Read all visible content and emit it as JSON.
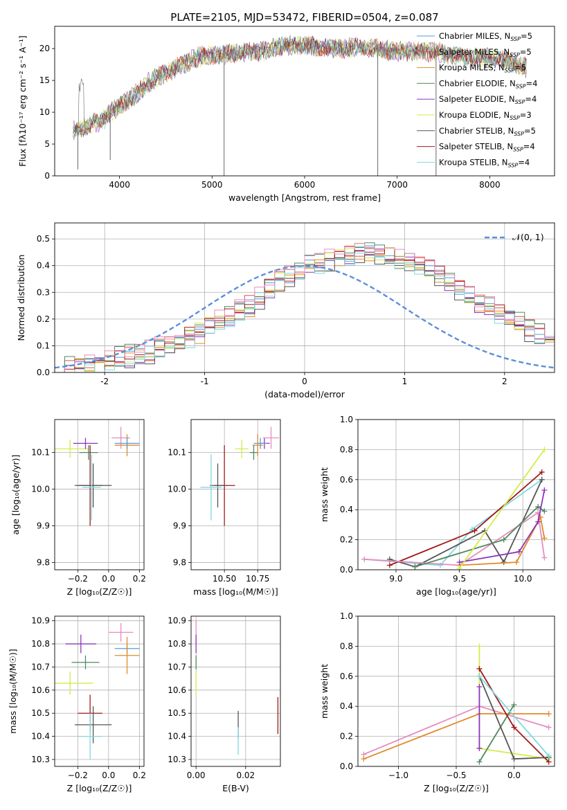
{
  "figure_title": "PLATE=2105, MJD=53472, FIBERID=0504, z=0.087",
  "colors": {
    "Chabrier MILES": "#5a9bd4",
    "Salpeter MILES": "#e2504c",
    "Kroupa MILES": "#e08a2a",
    "Chabrier ELODIE": "#4e8a5c",
    "Salpeter ELODIE": "#8e35b8",
    "Kroupa ELODIE": "#d6ea4a",
    "Chabrier STELIB": "#555555",
    "Salpeter STELIB": "#a01818",
    "Kroupa STELIB": "#7fd8e0",
    "Salpeter MILES dist": "#e58cc0",
    "gaussian": "#5b8fd8"
  },
  "chart_data": [
    {
      "id": "spectrum",
      "type": "line",
      "xlabel": "wavelength [Angstrom, rest frame]",
      "ylabel": "Flux [fλ10⁻¹⁷ erg cm⁻² s⁻¹ A⁻¹]",
      "xlim": [
        3300,
        8700
      ],
      "ylim": [
        0,
        23.5
      ],
      "xticks": [
        4000,
        5000,
        6000,
        7000,
        8000
      ],
      "yticks": [
        0,
        5,
        10,
        15,
        20
      ],
      "legend_loc": "upper right",
      "legend": [
        "Chabrier MILES, N_SSP=5",
        "Salpeter MILES, N_SSP=5",
        "Kroupa MILES, N_SSP=5",
        "Chabrier ELODIE, N_SSP=4",
        "Salpeter ELODIE, N_SSP=4",
        "Kroupa ELODIE, N_SSP=3",
        "Chabrier STELIB, N_SSP=5",
        "Salpeter STELIB, N_SSP=4",
        "Kroupa STELIB, N_SSP=4"
      ],
      "continuum": {
        "x": [
          3500,
          3600,
          3700,
          3800,
          3900,
          4000,
          4100,
          4200,
          4300,
          4400,
          4500,
          4600,
          4700,
          4800,
          4900,
          5000,
          5200,
          5400,
          5600,
          5800,
          6000,
          6200,
          6400,
          6600,
          6800,
          7000,
          7200,
          7400,
          7600,
          7800,
          8000,
          8200,
          8400
        ],
        "y": [
          7.0,
          7.5,
          8.2,
          8.5,
          10.0,
          11.0,
          12.0,
          13.0,
          14.5,
          15.5,
          16.0,
          17.0,
          17.5,
          18.5,
          18.8,
          19.0,
          19.2,
          19.5,
          19.8,
          20.5,
          20.5,
          20.2,
          20.0,
          20.3,
          20.0,
          19.5,
          19.5,
          19.5,
          19.0,
          18.5,
          18.5,
          18.0,
          17.0
        ]
      },
      "drops": [
        {
          "x": 5130,
          "y": 0.0
        },
        {
          "x": 3900,
          "y": 2.5
        },
        {
          "x": 6790,
          "y": 0.0
        },
        {
          "x": 7420,
          "y": 0.0
        },
        {
          "x": 3550,
          "y": 1.0
        }
      ]
    },
    {
      "id": "residuals",
      "type": "histogram",
      "xlabel": "(data-model)/error",
      "ylabel": "Normed distribution",
      "xlim": [
        -2.5,
        2.5
      ],
      "ylim": [
        0,
        0.56
      ],
      "xticks": [
        -2,
        -1,
        0,
        1,
        2
      ],
      "yticks": [
        0.0,
        0.1,
        0.2,
        0.3,
        0.4,
        0.5
      ],
      "legend_loc": "upper right",
      "legend": [
        "𝒩(0, 1)"
      ],
      "bin_width": 0.1,
      "bin_start": -2.5,
      "base_profile": [
        0.01,
        0.015,
        0.02,
        0.025,
        0.03,
        0.04,
        0.05,
        0.06,
        0.07,
        0.08,
        0.09,
        0.1,
        0.115,
        0.13,
        0.15,
        0.17,
        0.19,
        0.21,
        0.23,
        0.25,
        0.28,
        0.31,
        0.34,
        0.36,
        0.38,
        0.4,
        0.41,
        0.42,
        0.43,
        0.44,
        0.45,
        0.45,
        0.44,
        0.43,
        0.42,
        0.41,
        0.4,
        0.38,
        0.36,
        0.34,
        0.31,
        0.28,
        0.26,
        0.24,
        0.22,
        0.2,
        0.18,
        0.16,
        0.14,
        0.12
      ],
      "series_offsets": [
        0.0,
        0.02,
        -0.02,
        0.03,
        -0.01,
        0.01,
        -0.03,
        0.02,
        -0.015,
        0.025
      ]
    },
    {
      "id": "age_vs_Z",
      "type": "errorbar",
      "xlabel": "Z [log₁₀(Z/Z☉)]",
      "ylabel": "age  [log₁₀(age/yr)]",
      "xlim": [
        -0.35,
        0.23
      ],
      "ylim": [
        9.78,
        10.19
      ],
      "xticks": [
        -0.2,
        0.0,
        0.2
      ],
      "yticks": [
        9.8,
        9.9,
        10.0,
        10.1
      ],
      "points": [
        {
          "s": "Kroupa ELODIE",
          "x": -0.25,
          "y": 10.11,
          "xe": 0.12,
          "ye": 0.025
        },
        {
          "s": "Salpeter ELODIE",
          "x": -0.15,
          "y": 10.125,
          "xe": 0.08,
          "ye": 0.015
        },
        {
          "s": "Chabrier ELODIE",
          "x": -0.13,
          "y": 10.1,
          "xe": 0.06,
          "ye": 0.02
        },
        {
          "s": "Salpeter MILES dist",
          "x": 0.08,
          "y": 10.14,
          "xe": 0.06,
          "ye": 0.03
        },
        {
          "s": "Kroupa MILES",
          "x": 0.12,
          "y": 10.12,
          "xe": 0.08,
          "ye": 0.03
        },
        {
          "s": "Chabrier MILES",
          "x": 0.12,
          "y": 10.125,
          "xe": 0.08,
          "ye": 0.015
        },
        {
          "s": "Salpeter STELIB",
          "x": -0.12,
          "y": 10.01,
          "xe": 0.08,
          "ye": 0.11
        },
        {
          "s": "Chabrier STELIB",
          "x": -0.1,
          "y": 10.01,
          "xe": 0.12,
          "ye": 0.06
        },
        {
          "s": "Kroupa STELIB",
          "x": -0.11,
          "y": 10.005,
          "xe": 0.06,
          "ye": 0.09
        }
      ]
    },
    {
      "id": "age_vs_mass",
      "type": "errorbar",
      "xlabel": "mass [log₁₀(M/M☉)]",
      "ylabel": "",
      "xlim": [
        10.25,
        10.92
      ],
      "ylim": [
        9.78,
        10.19
      ],
      "xticks": [
        10.5,
        10.75
      ],
      "yticks": [
        9.8,
        9.9,
        10.0,
        10.1
      ],
      "points": [
        {
          "s": "Kroupa ELODIE",
          "x": 10.63,
          "y": 10.11,
          "xe": 0.05,
          "ye": 0.025
        },
        {
          "s": "Chabrier ELODIE",
          "x": 10.72,
          "y": 10.1,
          "xe": 0.03,
          "ye": 0.02
        },
        {
          "s": "Salpeter ELODIE",
          "x": 10.8,
          "y": 10.125,
          "xe": 0.04,
          "ye": 0.015
        },
        {
          "s": "Salpeter MILES dist",
          "x": 10.85,
          "y": 10.14,
          "xe": 0.06,
          "ye": 0.03
        },
        {
          "s": "Kroupa MILES",
          "x": 10.75,
          "y": 10.12,
          "xe": 0.04,
          "ye": 0.03
        },
        {
          "s": "Chabrier MILES",
          "x": 10.77,
          "y": 10.125,
          "xe": 0.05,
          "ye": 0.015
        },
        {
          "s": "Salpeter STELIB",
          "x": 10.5,
          "y": 10.01,
          "xe": 0.08,
          "ye": 0.11
        },
        {
          "s": "Chabrier STELIB",
          "x": 10.45,
          "y": 10.01,
          "xe": 0.06,
          "ye": 0.06
        },
        {
          "s": "Kroupa STELIB",
          "x": 10.4,
          "y": 10.005,
          "xe": 0.08,
          "ye": 0.09
        }
      ]
    },
    {
      "id": "weight_vs_age",
      "type": "line",
      "xlabel": "age  [log₁₀(age/yr)]",
      "ylabel": "mass weight",
      "xlim": [
        8.7,
        10.25
      ],
      "ylim": [
        0,
        1.0
      ],
      "xticks": [
        9.0,
        9.5,
        10.0
      ],
      "yticks": [
        0.0,
        0.2,
        0.4,
        0.6,
        0.8,
        1.0
      ],
      "series": [
        {
          "s": "Kroupa STELIB",
          "x": [
            8.75,
            9.35,
            9.6,
            10.15
          ],
          "y": [
            0.07,
            0.03,
            0.27,
            0.6
          ]
        },
        {
          "s": "Salpeter STELIB",
          "x": [
            8.95,
            9.62,
            10.15
          ],
          "y": [
            0.03,
            0.26,
            0.65
          ]
        },
        {
          "s": "Chabrier STELIB",
          "x": [
            8.95,
            9.15,
            9.7,
            9.85,
            10.15
          ],
          "y": [
            0.07,
            0.02,
            0.26,
            0.05,
            0.6
          ]
        },
        {
          "s": "Salpeter MILES dist",
          "x": [
            8.75,
            9.5,
            10.12,
            10.17
          ],
          "y": [
            0.07,
            0.03,
            0.38,
            0.08
          ]
        },
        {
          "s": "Kroupa MILES",
          "x": [
            9.5,
            9.95,
            10.14,
            10.17
          ],
          "y": [
            0.03,
            0.05,
            0.35,
            0.21
          ]
        },
        {
          "s": "Chabrier ELODIE",
          "x": [
            9.15,
            9.85,
            10.12,
            10.17
          ],
          "y": [
            0.02,
            0.2,
            0.42,
            0.39
          ]
        },
        {
          "s": "Salpeter ELODIE",
          "x": [
            9.5,
            9.97,
            10.12,
            10.17
          ],
          "y": [
            0.05,
            0.12,
            0.32,
            0.53
          ]
        },
        {
          "s": "Kroupa ELODIE",
          "x": [
            9.5,
            10.17
          ],
          "y": [
            0.01,
            0.8
          ]
        }
      ]
    },
    {
      "id": "mass_vs_Z",
      "type": "errorbar",
      "xlabel": "Z [log₁₀(Z/Z☉)]",
      "ylabel": "mass [log₁₀(M/M☉)]",
      "xlim": [
        -0.35,
        0.23
      ],
      "ylim": [
        10.27,
        10.92
      ],
      "xticks": [
        -0.2,
        0.0,
        0.2
      ],
      "yticks": [
        10.3,
        10.4,
        10.5,
        10.6,
        10.7,
        10.8,
        10.9
      ],
      "points": [
        {
          "s": "Salpeter MILES dist",
          "x": 0.08,
          "y": 10.85,
          "xe": 0.08,
          "ye": 0.04
        },
        {
          "s": "Salpeter ELODIE",
          "x": -0.18,
          "y": 10.8,
          "xe": 0.1,
          "ye": 0.04
        },
        {
          "s": "Chabrier MILES",
          "x": 0.12,
          "y": 10.78,
          "xe": 0.08,
          "ye": 0.02
        },
        {
          "s": "Kroupa MILES",
          "x": 0.12,
          "y": 10.75,
          "xe": 0.08,
          "ye": 0.08
        },
        {
          "s": "Chabrier ELODIE",
          "x": -0.15,
          "y": 10.72,
          "xe": 0.09,
          "ye": 0.03
        },
        {
          "s": "Kroupa ELODIE",
          "x": -0.25,
          "y": 10.63,
          "xe": 0.15,
          "ye": 0.05
        },
        {
          "s": "Salpeter STELIB",
          "x": -0.12,
          "y": 10.5,
          "xe": 0.08,
          "ye": 0.08
        },
        {
          "s": "Chabrier STELIB",
          "x": -0.1,
          "y": 10.45,
          "xe": 0.12,
          "ye": 0.08
        },
        {
          "s": "Kroupa STELIB",
          "x": -0.12,
          "y": 10.4,
          "xe": 0.08,
          "ye": 0.1
        }
      ]
    },
    {
      "id": "mass_vs_EBV",
      "type": "errorbar",
      "xlabel": "E(B-V)",
      "ylabel": "",
      "xlim": [
        -0.002,
        0.034
      ],
      "ylim": [
        10.27,
        10.92
      ],
      "xticks": [
        0.0,
        0.02
      ],
      "yticks": [
        10.3,
        10.4,
        10.5,
        10.6,
        10.7,
        10.8,
        10.9
      ],
      "points": [
        {
          "s": "Salpeter MILES dist",
          "x": 0.0,
          "y": 10.85,
          "xe": 0.0,
          "ye": 0.05
        },
        {
          "s": "Salpeter ELODIE",
          "x": 0.0,
          "y": 10.8,
          "xe": 0.0,
          "ye": 0.04
        },
        {
          "s": "Chabrier ELODIE",
          "x": 0.0,
          "y": 10.72,
          "xe": 0.0,
          "ye": 0.03
        },
        {
          "s": "Kroupa ELODIE",
          "x": 0.0,
          "y": 10.63,
          "xe": 0.0,
          "ye": 0.05
        },
        {
          "s": "Chabrier STELIB",
          "x": 0.017,
          "y": 10.45,
          "xe": 0.0,
          "ye": 0.06
        },
        {
          "s": "Kroupa STELIB",
          "x": 0.017,
          "y": 10.38,
          "xe": 0.0,
          "ye": 0.06
        },
        {
          "s": "Salpeter STELIB",
          "x": 0.033,
          "y": 10.49,
          "xe": 0.0,
          "ye": 0.08
        }
      ]
    },
    {
      "id": "weight_vs_Z",
      "type": "line",
      "xlabel": "Z [log₁₀(Z/Z☉)]",
      "ylabel": "mass weight",
      "xlim": [
        -1.35,
        0.35
      ],
      "ylim": [
        0,
        1.0
      ],
      "xticks": [
        -1.0,
        -0.5,
        0.0
      ],
      "yticks": [
        0.0,
        0.2,
        0.4,
        0.6,
        0.8,
        1.0
      ],
      "series": [
        {
          "s": "Salpeter MILES dist",
          "x": [
            -1.3,
            -0.3,
            0.3
          ],
          "y": [
            0.08,
            0.4,
            0.26
          ]
        },
        {
          "s": "Kroupa MILES",
          "x": [
            -1.3,
            -0.3,
            0.3
          ],
          "y": [
            0.05,
            0.35,
            0.35
          ]
        },
        {
          "s": "Kroupa ELODIE",
          "x": [
            -0.3,
            -0.3,
            0.3
          ],
          "y": [
            0.8,
            0.12,
            0.05
          ]
        },
        {
          "s": "Chabrier ELODIE",
          "x": [
            -0.3,
            0.0
          ],
          "y": [
            0.03,
            0.41
          ]
        },
        {
          "s": "Salpeter ELODIE",
          "x": [
            -0.3,
            -0.3
          ],
          "y": [
            0.53,
            0.12
          ]
        },
        {
          "s": "Salpeter STELIB",
          "x": [
            -0.3,
            0.0,
            0.3
          ],
          "y": [
            0.65,
            0.26,
            0.03
          ]
        },
        {
          "s": "Chabrier STELIB",
          "x": [
            -0.3,
            0.0,
            0.3
          ],
          "y": [
            0.6,
            0.05,
            0.06
          ]
        },
        {
          "s": "Kroupa STELIB",
          "x": [
            -0.3,
            0.3
          ],
          "y": [
            0.6,
            0.07
          ]
        }
      ]
    }
  ]
}
